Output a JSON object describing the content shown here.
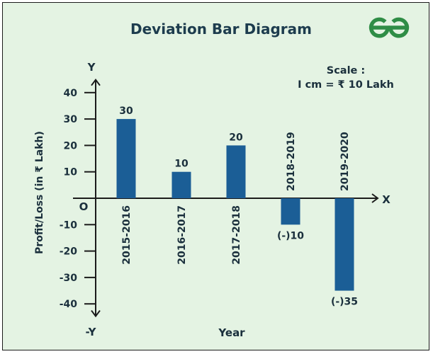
{
  "chart_data": {
    "type": "bar",
    "title": "Deviation Bar Diagram",
    "categories": [
      "2015-2016",
      "2016-2017",
      "2017-2018",
      "2018-2019",
      "2019-2020"
    ],
    "values": [
      30,
      10,
      20,
      -10,
      -35
    ],
    "data_labels": [
      "30",
      "10",
      "20",
      "(-)10",
      "(-)35"
    ],
    "xlabel": "Year",
    "ylabel": "Profit/Loss (in ₹ Lakh)",
    "yticks": [
      40,
      30,
      20,
      10,
      -10,
      -20,
      -30,
      -40
    ],
    "ylim": [
      -46,
      47
    ],
    "axis_letters": {
      "y_top": "Y",
      "x_right": "X",
      "origin": "O",
      "y_bottom": "-Y"
    },
    "scale_note": {
      "line1": "Scale :",
      "line2": "I cm =  ₹ 10 Lakh"
    },
    "bar_color": "#1b5e96",
    "grid": false,
    "legend": "none"
  },
  "logo": {
    "name": "geeksforgeeks-logo",
    "color": "#2f8d46"
  },
  "colors": {
    "background": "#e4f3e3",
    "axis": "#1b1b1b",
    "text": "#1a2f3c"
  }
}
